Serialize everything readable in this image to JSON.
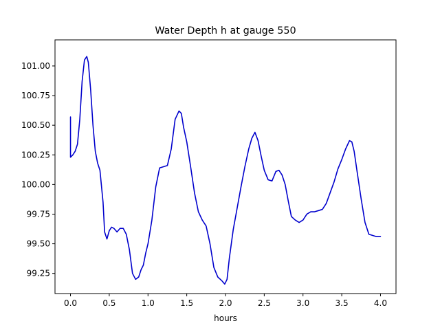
{
  "chart_data": {
    "type": "line",
    "title": "Water Depth h at gauge 550",
    "xlabel": "hours",
    "ylabel": "",
    "xlim": [
      -0.2,
      4.2
    ],
    "ylim": [
      99.08,
      101.22
    ],
    "xticks": [
      0.0,
      0.5,
      1.0,
      1.5,
      2.0,
      2.5,
      3.0,
      3.5,
      4.0
    ],
    "xtick_labels": [
      "0.0",
      "0.5",
      "1.0",
      "1.5",
      "2.0",
      "2.5",
      "3.0",
      "3.5",
      "4.0"
    ],
    "yticks": [
      99.25,
      99.5,
      99.75,
      100.0,
      100.25,
      100.5,
      100.75,
      101.0
    ],
    "ytick_labels": [
      "99.25",
      "99.50",
      "99.75",
      "100.00",
      "100.25",
      "100.50",
      "100.75",
      "101.00"
    ],
    "grid": false,
    "series": [
      {
        "name": "",
        "color": "#0000cc",
        "x": [
          0.0,
          0.0,
          0.03,
          0.06,
          0.09,
          0.12,
          0.15,
          0.18,
          0.21,
          0.23,
          0.26,
          0.29,
          0.32,
          0.35,
          0.38,
          0.42,
          0.44,
          0.47,
          0.5,
          0.53,
          0.56,
          0.6,
          0.64,
          0.68,
          0.72,
          0.76,
          0.8,
          0.84,
          0.88,
          0.91,
          0.94,
          0.97,
          1.0,
          1.05,
          1.1,
          1.15,
          1.2,
          1.25,
          1.3,
          1.35,
          1.4,
          1.43,
          1.46,
          1.5,
          1.55,
          1.6,
          1.65,
          1.7,
          1.75,
          1.8,
          1.85,
          1.9,
          1.95,
          1.99,
          2.02,
          2.05,
          2.1,
          2.15,
          2.2,
          2.25,
          2.3,
          2.34,
          2.38,
          2.42,
          2.46,
          2.5,
          2.55,
          2.6,
          2.65,
          2.69,
          2.73,
          2.77,
          2.81,
          2.85,
          2.9,
          2.95,
          3.0,
          3.05,
          3.1,
          3.15,
          3.2,
          3.25,
          3.3,
          3.35,
          3.4,
          3.45,
          3.5,
          3.55,
          3.6,
          3.63,
          3.66,
          3.7,
          3.75,
          3.8,
          3.85,
          3.9,
          3.95,
          4.0
        ],
        "y": [
          100.57,
          100.23,
          100.25,
          100.28,
          100.34,
          100.55,
          100.87,
          101.05,
          101.08,
          101.03,
          100.8,
          100.5,
          100.28,
          100.18,
          100.12,
          99.85,
          99.6,
          99.54,
          99.61,
          99.64,
          99.63,
          99.6,
          99.63,
          99.63,
          99.58,
          99.45,
          99.25,
          99.2,
          99.22,
          99.28,
          99.32,
          99.42,
          99.5,
          99.7,
          99.98,
          100.14,
          100.15,
          100.16,
          100.3,
          100.55,
          100.62,
          100.6,
          100.48,
          100.36,
          100.15,
          99.93,
          99.77,
          99.7,
          99.65,
          99.5,
          99.3,
          99.22,
          99.19,
          99.16,
          99.2,
          99.38,
          99.62,
          99.8,
          99.98,
          100.15,
          100.3,
          100.39,
          100.44,
          100.37,
          100.24,
          100.12,
          100.04,
          100.03,
          100.11,
          100.12,
          100.08,
          100.0,
          99.86,
          99.73,
          99.7,
          99.68,
          99.7,
          99.75,
          99.77,
          99.77,
          99.78,
          99.79,
          99.84,
          99.93,
          100.02,
          100.13,
          100.21,
          100.3,
          100.37,
          100.36,
          100.28,
          100.1,
          99.88,
          99.68,
          99.58,
          99.57,
          99.56,
          99.56
        ]
      }
    ]
  }
}
